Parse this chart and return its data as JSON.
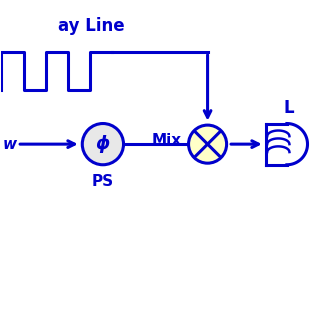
{
  "blue": "#0000CC",
  "bg": "#FFFFFF",
  "mixer_fill": "#FFFFC8",
  "ps_fill": "#E8E8E8",
  "title_text": "ay Line",
  "mix_label": "Mix",
  "ps_label": "PS",
  "phi_label": "ϕ",
  "lpf_label": "L",
  "w_label": "w",
  "lw": 2.2
}
